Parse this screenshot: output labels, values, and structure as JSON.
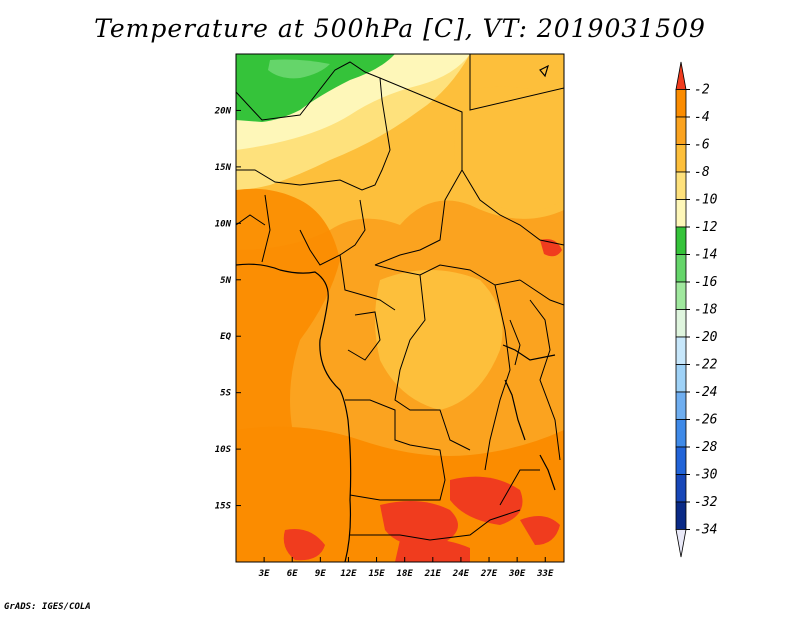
{
  "title": "Temperature at 500hPa [C], VT: 2019031509",
  "footer": "GrADS: IGES/COLA",
  "map": {
    "lat_ticks": [
      "20N",
      "15N",
      "10N",
      "5N",
      "EQ",
      "5S",
      "10S",
      "15S"
    ],
    "lon_ticks": [
      "3E",
      "6E",
      "9E",
      "12E",
      "15E",
      "18E",
      "21E",
      "24E",
      "27E",
      "30E",
      "33E"
    ],
    "lat_range": [
      -20,
      25
    ],
    "lon_range": [
      0,
      35
    ]
  },
  "colorbar": {
    "labels": [
      "-2",
      "-4",
      "-6",
      "-8",
      "-10",
      "-12",
      "-14",
      "-16",
      "-18",
      "-20",
      "-22",
      "-24",
      "-26",
      "-28",
      "-30",
      "-32",
      "-34"
    ],
    "colors": [
      "#f03c1e",
      "#fb8c00",
      "#fba31f",
      "#fdbf3b",
      "#fee17c",
      "#fef7b9",
      "#35c33a",
      "#65d56a",
      "#a0e89e",
      "#dff5de",
      "#c7e7fb",
      "#9fd2f7",
      "#6faef0",
      "#3f8ae8",
      "#2264d8",
      "#1747b8",
      "#0a2a86",
      "#e9e9f8"
    ]
  }
}
